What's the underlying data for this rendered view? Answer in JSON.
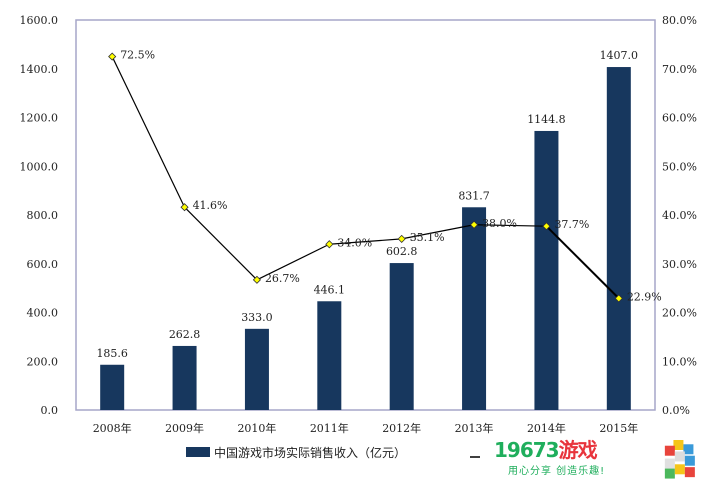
{
  "chart_data": {
    "type": "bar+line",
    "categories": [
      "2008年",
      "2009年",
      "2010年",
      "2011年",
      "2012年",
      "2013年",
      "2014年",
      "2015年"
    ],
    "series": [
      {
        "name": "中国游戏市场实际销售收入（亿元）",
        "type": "bar",
        "axis": "left",
        "color": "#17375e",
        "values": [
          185.6,
          262.8,
          333.0,
          446.1,
          602.8,
          831.7,
          1144.8,
          1407.0
        ],
        "labels": [
          "185.6",
          "262.8",
          "333.0",
          "446.1",
          "602.8",
          "831.7",
          "1144.8",
          "1407.0"
        ]
      },
      {
        "type": "line",
        "axis": "right",
        "color": "#000000",
        "marker_color": "#ffff00",
        "values": [
          72.5,
          41.6,
          26.7,
          34.0,
          35.1,
          38.0,
          37.7,
          22.9
        ],
        "labels": [
          "72.5%",
          "41.6%",
          "26.7%",
          "34.0%",
          "35.1%",
          "38.0%",
          "37.7%",
          "22.9%"
        ]
      }
    ],
    "y_left": {
      "range": [
        0,
        1600
      ],
      "ticks": [
        "0.0",
        "200.0",
        "400.0",
        "600.0",
        "800.0",
        "1000.0",
        "1200.0",
        "1400.0",
        "1600.0"
      ]
    },
    "y_right": {
      "range": [
        0,
        80
      ],
      "ticks": [
        "0.0%",
        "10.0%",
        "20.0%",
        "30.0%",
        "40.0%",
        "50.0%",
        "60.0%",
        "70.0%",
        "80.0%"
      ]
    },
    "legend": {
      "position": "bottom",
      "items": [
        "中国游戏市场实际销售收入（亿元）"
      ]
    },
    "grid": false
  },
  "watermark": {
    "brand_num": "19673",
    "brand_cn": "游戏",
    "slogan": "用心分享 创造乐趣!"
  }
}
